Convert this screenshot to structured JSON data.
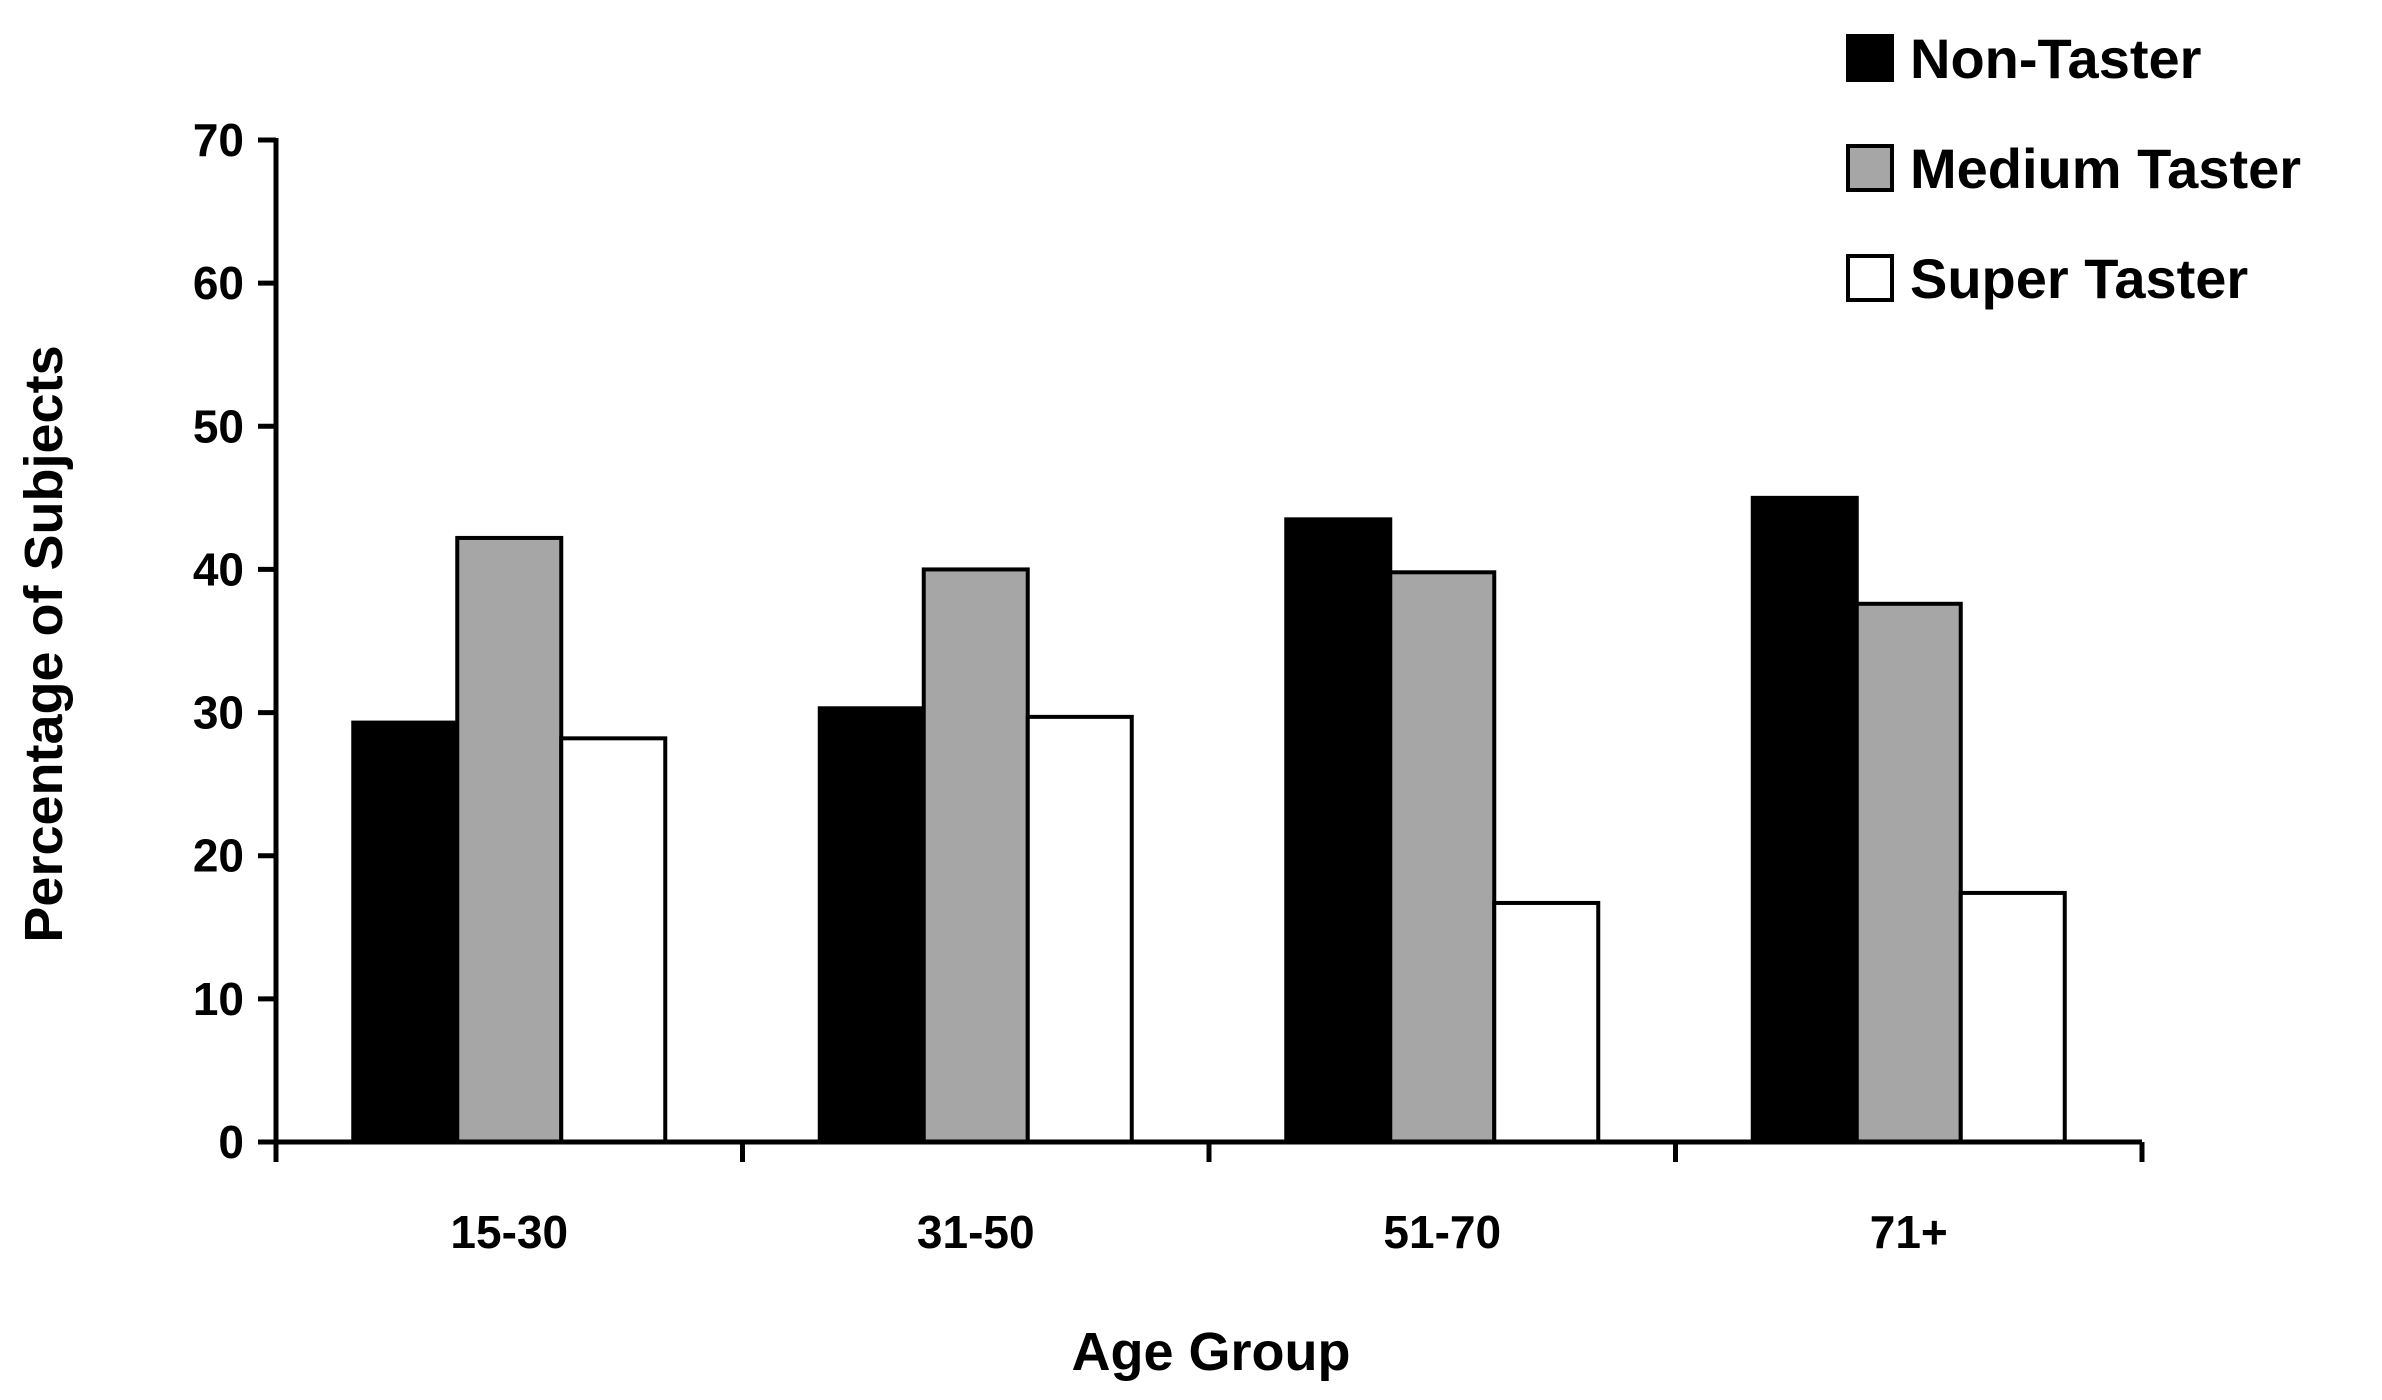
{
  "chart_data": {
    "type": "bar",
    "title": "",
    "xlabel": "Age Group",
    "ylabel": "Percentage of Subjects",
    "categories": [
      "15-30",
      "31-50",
      "51-70",
      "71+"
    ],
    "ylim": [
      0,
      70
    ],
    "yticks": [
      0,
      10,
      20,
      30,
      40,
      50,
      60,
      70
    ],
    "grid": false,
    "legend_position": "top-right",
    "series": [
      {
        "name": "Non-Taster",
        "color": "#000000",
        "values": [
          29.3,
          30.3,
          43.5,
          45.0
        ]
      },
      {
        "name": "Medium Taster",
        "color": "#a6a6a6",
        "values": [
          42.2,
          40.0,
          39.8,
          37.6
        ]
      },
      {
        "name": "Super Taster",
        "color": "#ffffff",
        "values": [
          28.2,
          29.7,
          16.7,
          17.4
        ]
      }
    ]
  }
}
